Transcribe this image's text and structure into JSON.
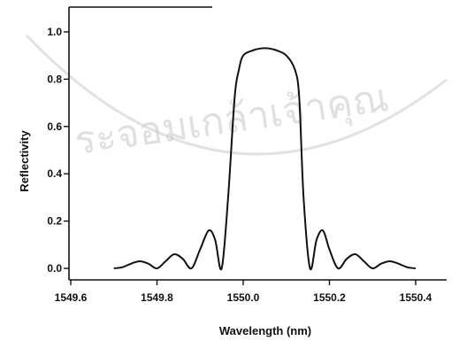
{
  "chart_data": {
    "type": "line",
    "title": "",
    "xlabel": "Wavelength (nm)",
    "ylabel": "Reflectivity",
    "xlim": [
      1549.6,
      1550.42
    ],
    "ylim": [
      -0.05,
      1.08
    ],
    "xticks": [
      1549.6,
      1549.8,
      1550.0,
      1550.2,
      1550.4
    ],
    "xtick_labels": [
      "1549.6",
      "1549.8",
      "1550.0",
      "1550.2",
      "1550.4"
    ],
    "yticks": [
      0.0,
      0.2,
      0.4,
      0.6,
      0.8,
      1.0
    ],
    "ytick_labels": [
      "0.0",
      "0.2",
      "0.4",
      "0.6",
      "0.8",
      "1.0"
    ],
    "grid": false,
    "series": [
      {
        "x": [
          1549.7,
          1549.72,
          1549.74,
          1549.76,
          1549.78,
          1549.8,
          1549.82,
          1549.84,
          1549.86,
          1549.88,
          1549.9,
          1549.92,
          1549.935,
          1549.95,
          1549.965,
          1549.98,
          1549.99,
          1550.0,
          1550.02,
          1550.04,
          1550.06,
          1550.08,
          1550.1,
          1550.12,
          1550.13,
          1550.14,
          1550.155,
          1550.17,
          1550.185,
          1550.2,
          1550.22,
          1550.24,
          1550.26,
          1550.28,
          1550.3,
          1550.32,
          1550.34,
          1550.36,
          1550.38,
          1550.4
        ],
        "y": [
          0.0,
          0.005,
          0.02,
          0.03,
          0.02,
          0.0,
          0.03,
          0.06,
          0.04,
          0.0,
          0.08,
          0.16,
          0.12,
          0.0,
          0.3,
          0.72,
          0.84,
          0.9,
          0.92,
          0.93,
          0.93,
          0.92,
          0.9,
          0.84,
          0.72,
          0.3,
          0.0,
          0.12,
          0.16,
          0.08,
          0.0,
          0.04,
          0.06,
          0.03,
          0.0,
          0.02,
          0.03,
          0.02,
          0.005,
          0.0
        ]
      }
    ]
  },
  "watermark": {
    "text": "ระจอมเกล้าเจ้าคุณ",
    "color": "#c8c8c8"
  }
}
